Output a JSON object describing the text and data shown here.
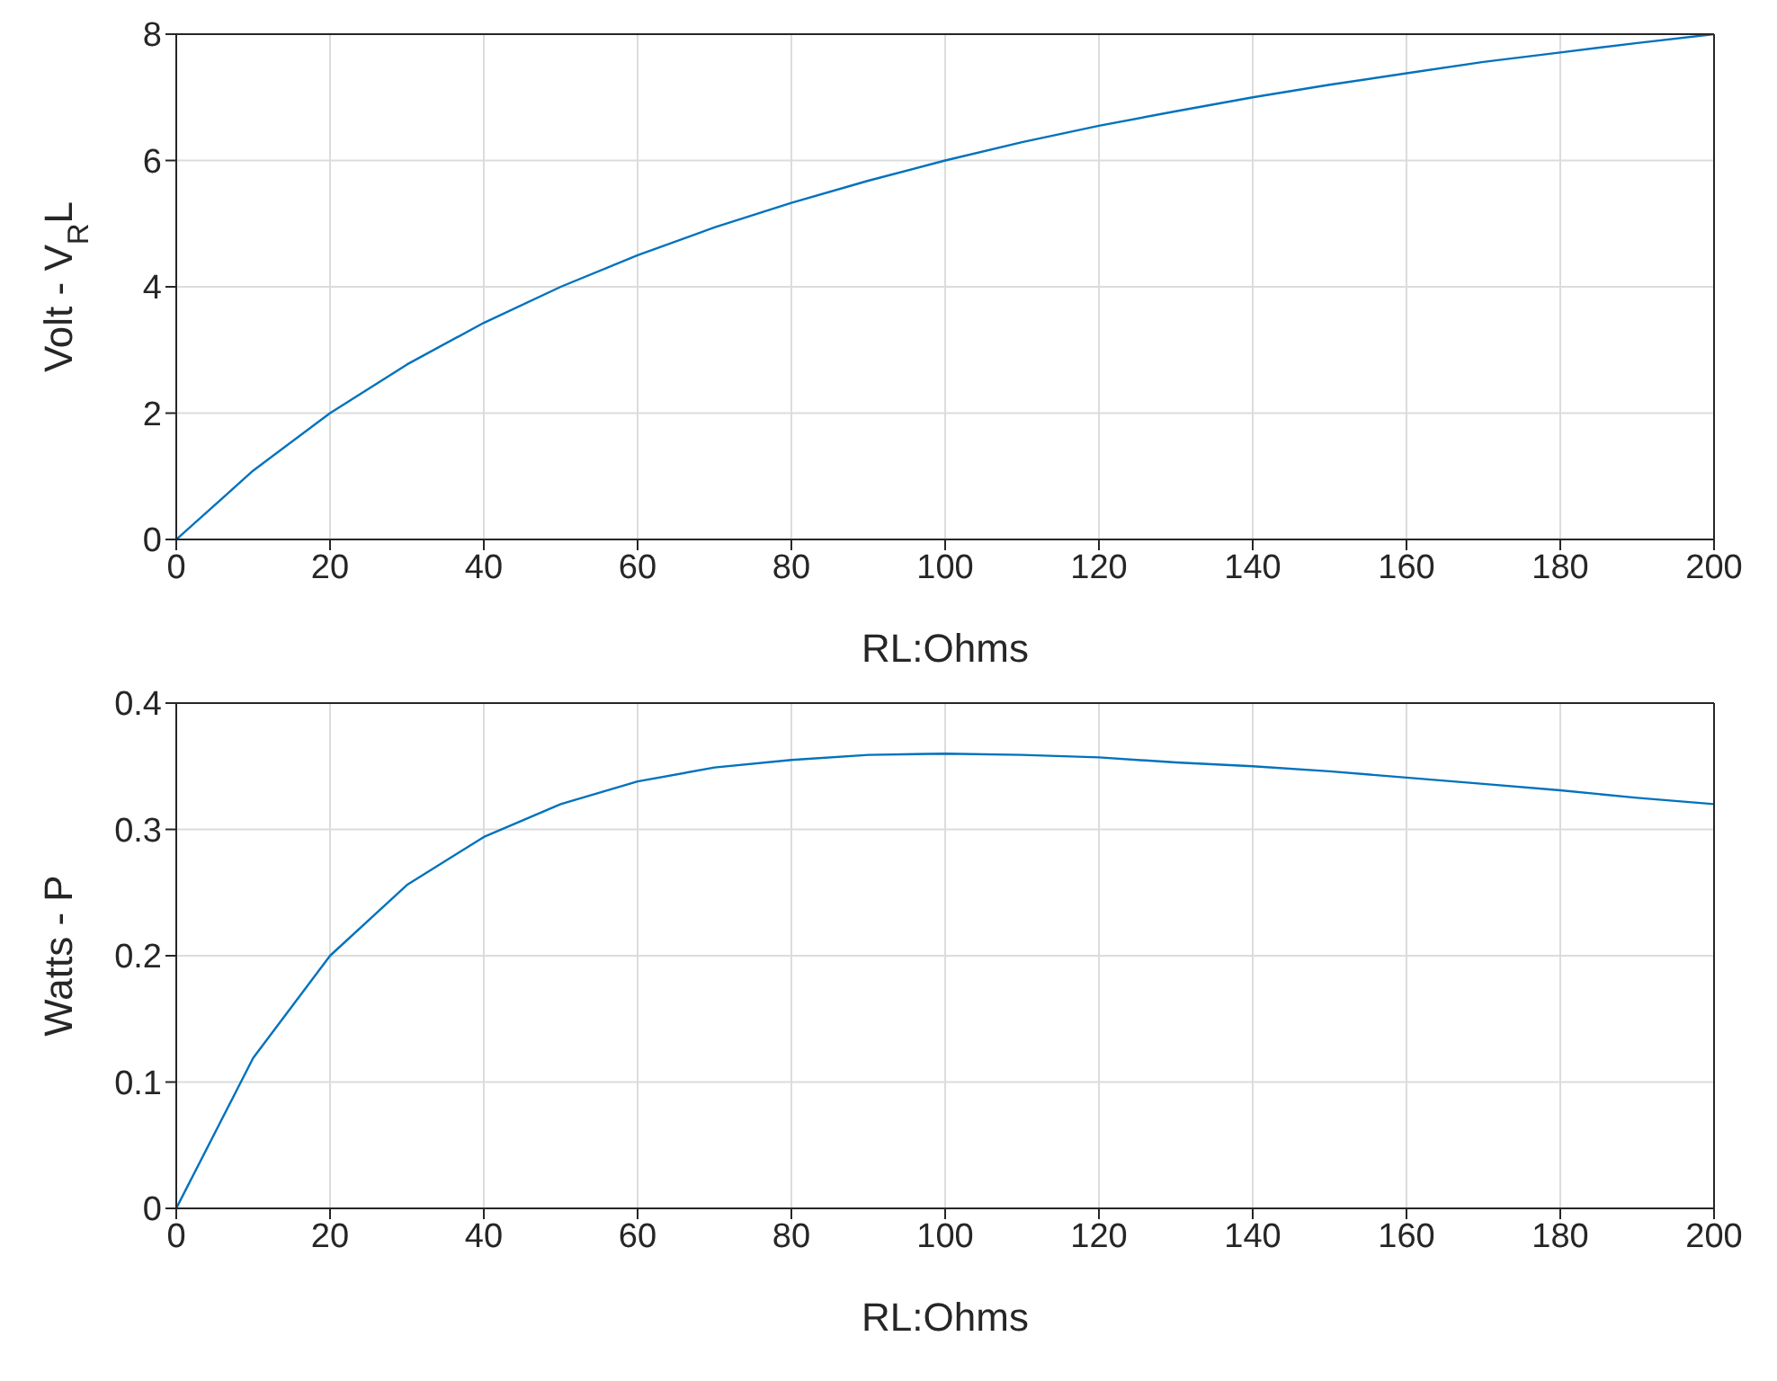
{
  "chart_data": [
    {
      "type": "line",
      "xlabel": "RL:Ohms",
      "ylabel": "Volt - V$_{R}$L",
      "x": [
        0,
        10,
        20,
        30,
        40,
        50,
        60,
        70,
        80,
        90,
        100,
        110,
        120,
        130,
        140,
        150,
        160,
        170,
        180,
        190,
        200
      ],
      "series": [
        {
          "color": "#0072bd",
          "values": [
            0,
            1.09,
            2,
            2.77,
            3.43,
            4,
            4.5,
            4.94,
            5.33,
            5.68,
            6,
            6.29,
            6.55,
            6.78,
            7,
            7.2,
            7.38,
            7.56,
            7.71,
            7.86,
            8
          ]
        }
      ],
      "xlim": [
        0,
        200
      ],
      "xticks": [
        0,
        20,
        40,
        60,
        80,
        100,
        120,
        140,
        160,
        180,
        200
      ],
      "ylim": [
        0,
        8
      ],
      "yticks": [
        0,
        2,
        4,
        6,
        8
      ],
      "grid": true,
      "marker": "none",
      "line_style": "solid"
    },
    {
      "type": "line",
      "xlabel": "RL:Ohms",
      "ylabel": "Watts - P",
      "x": [
        0,
        10,
        20,
        30,
        40,
        50,
        60,
        70,
        80,
        90,
        100,
        110,
        120,
        130,
        140,
        150,
        160,
        170,
        180,
        190,
        200
      ],
      "series": [
        {
          "color": "#0072bd",
          "values": [
            0,
            0.119,
            0.2,
            0.256,
            0.294,
            0.32,
            0.338,
            0.349,
            0.355,
            0.359,
            0.36,
            0.359,
            0.357,
            0.353,
            0.35,
            0.346,
            0.341,
            0.336,
            0.331,
            0.325,
            0.32
          ]
        }
      ],
      "xlim": [
        0,
        200
      ],
      "xticks": [
        0,
        20,
        40,
        60,
        80,
        100,
        120,
        140,
        160,
        180,
        200
      ],
      "ylim": [
        0,
        0.4
      ],
      "yticks": [
        0,
        0.1,
        0.2,
        0.3,
        0.4
      ],
      "grid": true,
      "marker": "none",
      "line_style": "solid"
    }
  ]
}
